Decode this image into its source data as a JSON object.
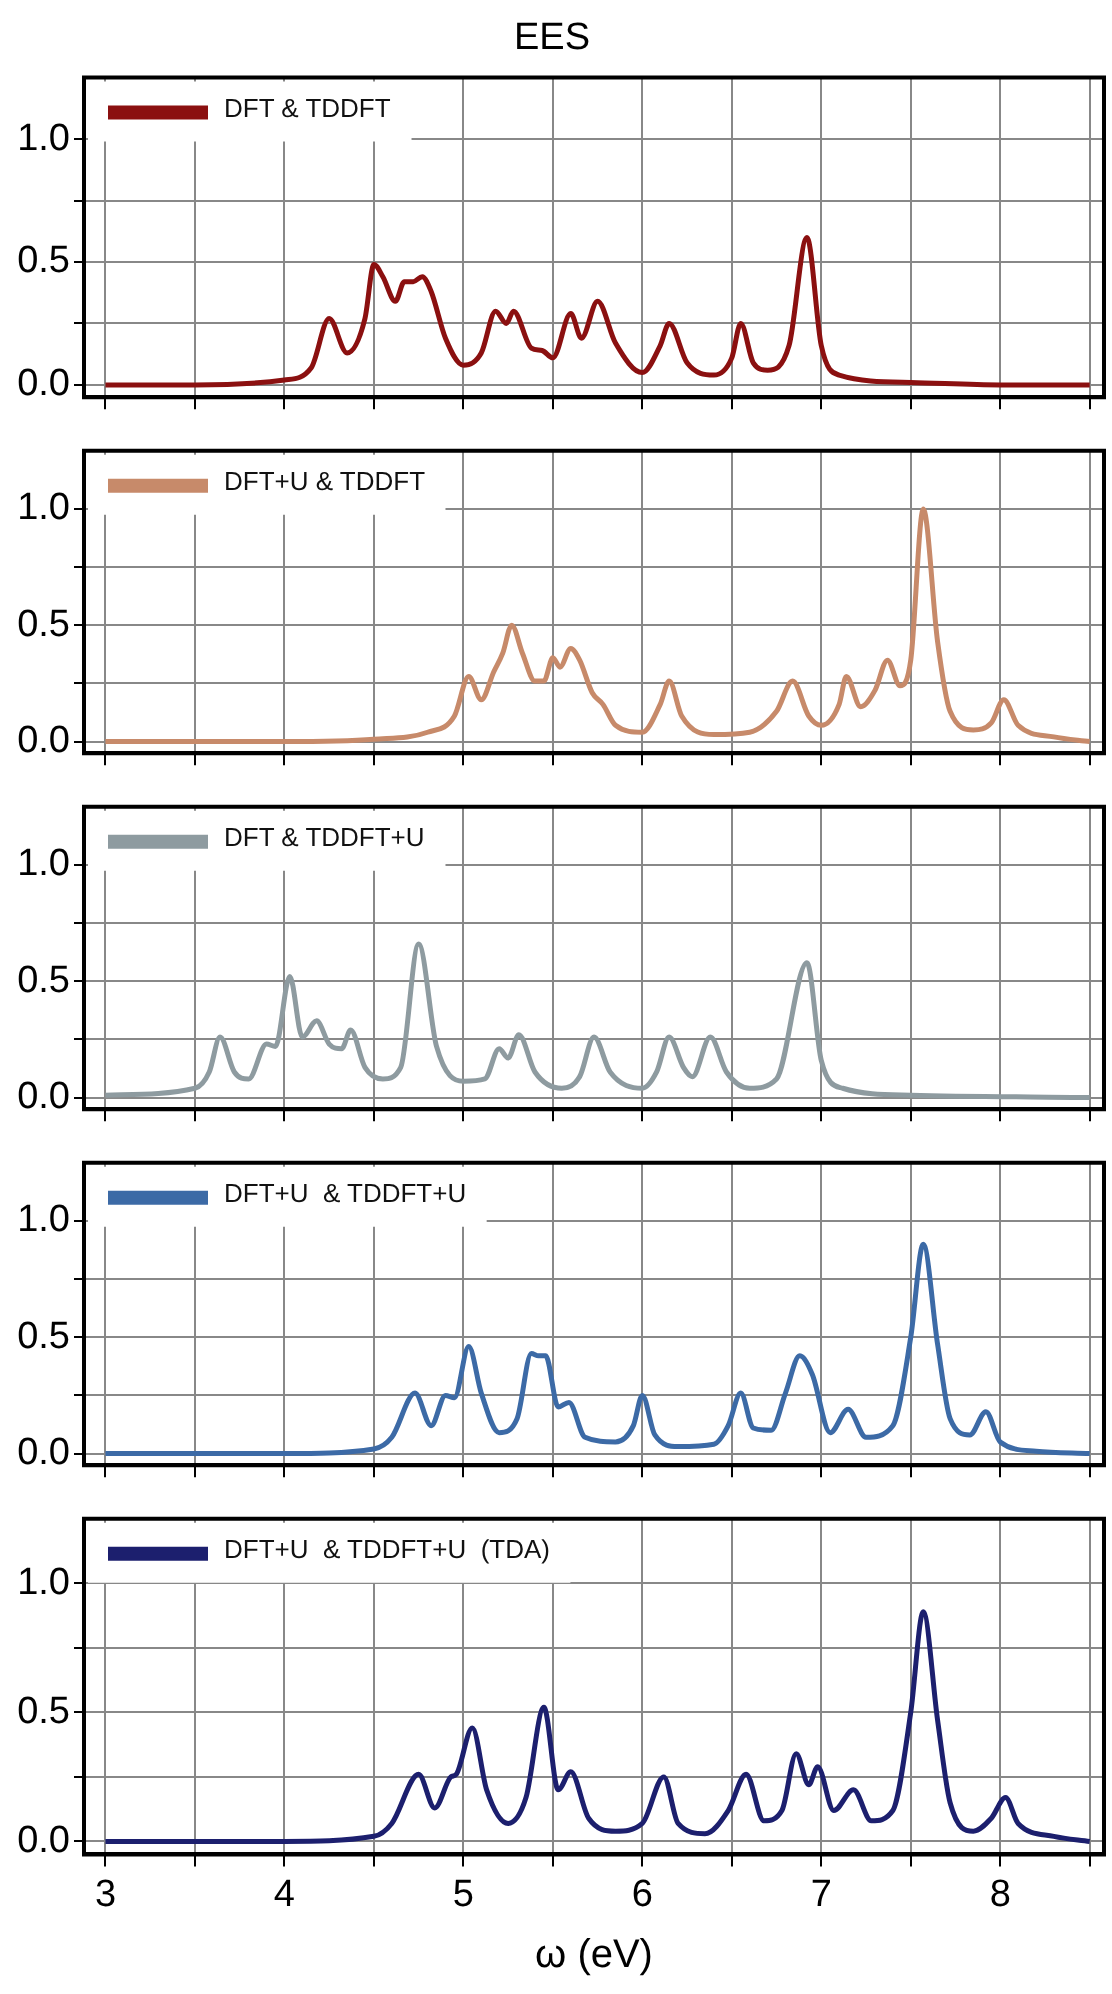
{
  "chart_data": [
    {
      "type": "line",
      "title": "EES",
      "legend": "top left",
      "marker": "none",
      "grid": true,
      "tick_labels": "y",
      "xlim": [
        2.88,
        8.58
      ],
      "ylim": [
        -0.05,
        1.25
      ],
      "xticks": [
        3,
        {
          "value": 3.5,
          "label": null
        },
        4,
        {
          "value": 4.5,
          "label": null
        },
        5,
        {
          "value": 5.5,
          "label": null
        },
        6,
        {
          "value": 6.5,
          "label": null
        },
        7,
        {
          "value": 7.5,
          "label": null
        },
        8,
        {
          "value": 8.5,
          "label": null
        }
      ],
      "yticks": [
        {
          "value": 0,
          "label": "0.0"
        },
        {
          "value": 0.25,
          "label": null
        },
        {
          "value": 0.5,
          "label": "0.5"
        },
        {
          "value": 0.75,
          "label": null
        },
        {
          "value": 1,
          "label": "1.0"
        }
      ],
      "series": [
        {
          "name": "DFT & TDDFT",
          "color": "#8b1010",
          "x": [
            3,
            3.5,
            4,
            4.15,
            4.25,
            4.35,
            4.45,
            4.5,
            4.55,
            4.62,
            4.67,
            4.72,
            4.77,
            4.82,
            4.9,
            5,
            5.1,
            5.18,
            5.24,
            5.28,
            5.38,
            5.44,
            5.5,
            5.6,
            5.66,
            5.75,
            5.85,
            6,
            6.1,
            6.15,
            6.25,
            6.4,
            6.5,
            6.55,
            6.62,
            6.7,
            6.82,
            6.92,
            7,
            7.1,
            7.5,
            8,
            8.5
          ],
          "values": [
            0,
            0,
            0.02,
            0.07,
            0.27,
            0.13,
            0.27,
            0.49,
            0.44,
            0.34,
            0.42,
            0.42,
            0.44,
            0.38,
            0.19,
            0.08,
            0.13,
            0.3,
            0.25,
            0.3,
            0.15,
            0.14,
            0.11,
            0.29,
            0.19,
            0.34,
            0.17,
            0.05,
            0.16,
            0.25,
            0.09,
            0.04,
            0.11,
            0.25,
            0.09,
            0.06,
            0.16,
            0.6,
            0.16,
            0.04,
            0.01,
            0,
            0
          ]
        }
      ]
    },
    {
      "type": "line",
      "legend": "top left",
      "marker": "none",
      "grid": true,
      "tick_labels": "y",
      "xlim": [
        2.88,
        8.58
      ],
      "ylim": [
        -0.05,
        1.25
      ],
      "xticks": [
        3,
        {
          "value": 3.5,
          "label": null
        },
        4,
        {
          "value": 4.5,
          "label": null
        },
        5,
        {
          "value": 5.5,
          "label": null
        },
        6,
        {
          "value": 6.5,
          "label": null
        },
        7,
        {
          "value": 7.5,
          "label": null
        },
        8,
        {
          "value": 8.5,
          "label": null
        }
      ],
      "yticks": [
        {
          "value": 0,
          "label": "0.0"
        },
        {
          "value": 0.25,
          "label": null
        },
        {
          "value": 0.5,
          "label": "0.5"
        },
        {
          "value": 0.75,
          "label": null
        },
        {
          "value": 1,
          "label": "1.0"
        }
      ],
      "series": [
        {
          "name": "DFT+U & TDDFT",
          "color": "#c78a6a",
          "x": [
            3,
            4,
            4.5,
            4.8,
            4.95,
            5.03,
            5.1,
            5.17,
            5.22,
            5.27,
            5.33,
            5.4,
            5.45,
            5.5,
            5.54,
            5.6,
            5.65,
            5.72,
            5.78,
            5.85,
            6,
            6.1,
            6.15,
            6.22,
            6.4,
            6.6,
            6.75,
            6.84,
            6.93,
            7,
            7.1,
            7.14,
            7.22,
            7.3,
            7.37,
            7.44,
            7.5,
            7.57,
            7.65,
            7.72,
            7.85,
            7.95,
            8.02,
            8.1,
            8.3,
            8.5
          ],
          "values": [
            0,
            0,
            0.01,
            0.04,
            0.11,
            0.28,
            0.18,
            0.3,
            0.38,
            0.5,
            0.38,
            0.26,
            0.26,
            0.36,
            0.32,
            0.4,
            0.35,
            0.21,
            0.16,
            0.07,
            0.04,
            0.16,
            0.26,
            0.11,
            0.03,
            0.04,
            0.13,
            0.26,
            0.11,
            0.07,
            0.16,
            0.28,
            0.15,
            0.22,
            0.35,
            0.24,
            0.35,
            1.0,
            0.43,
            0.13,
            0.05,
            0.08,
            0.18,
            0.07,
            0.02,
            0
          ]
        }
      ]
    },
    {
      "type": "line",
      "legend": "top left",
      "marker": "none",
      "grid": true,
      "tick_labels": "y",
      "xlim": [
        2.88,
        8.58
      ],
      "ylim": [
        -0.05,
        1.25
      ],
      "xticks": [
        3,
        {
          "value": 3.5,
          "label": null
        },
        4,
        {
          "value": 4.5,
          "label": null
        },
        5,
        {
          "value": 5.5,
          "label": null
        },
        6,
        {
          "value": 6.5,
          "label": null
        },
        7,
        {
          "value": 7.5,
          "label": null
        },
        8,
        {
          "value": 8.5,
          "label": null
        }
      ],
      "yticks": [
        {
          "value": 0,
          "label": "0.0"
        },
        {
          "value": 0.25,
          "label": null
        },
        {
          "value": 0.5,
          "label": "0.5"
        },
        {
          "value": 0.75,
          "label": null
        },
        {
          "value": 1,
          "label": "1.0"
        }
      ],
      "series": [
        {
          "name": "DFT & TDDFT+U",
          "color": "#8e9ba0",
          "x": [
            3,
            3.5,
            3.58,
            3.64,
            3.72,
            3.8,
            3.9,
            3.95,
            4.03,
            4.1,
            4.18,
            4.25,
            4.32,
            4.37,
            4.45,
            4.55,
            4.65,
            4.75,
            4.85,
            5,
            5.12,
            5.2,
            5.25,
            5.31,
            5.4,
            5.55,
            5.65,
            5.73,
            5.82,
            6,
            6.08,
            6.15,
            6.23,
            6.28,
            6.38,
            6.47,
            6.6,
            6.75,
            6.92,
            7,
            7.12,
            7.5,
            8.5
          ],
          "values": [
            0.01,
            0.04,
            0.11,
            0.26,
            0.11,
            0.08,
            0.23,
            0.22,
            0.52,
            0.26,
            0.33,
            0.23,
            0.21,
            0.29,
            0.13,
            0.08,
            0.13,
            0.66,
            0.22,
            0.07,
            0.08,
            0.21,
            0.17,
            0.27,
            0.11,
            0.04,
            0.09,
            0.26,
            0.11,
            0.04,
            0.11,
            0.26,
            0.13,
            0.09,
            0.26,
            0.11,
            0.04,
            0.08,
            0.58,
            0.16,
            0.04,
            0.01,
            0
          ]
        }
      ]
    },
    {
      "type": "line",
      "legend": "top left",
      "marker": "none",
      "grid": true,
      "tick_labels": "y",
      "xlim": [
        2.88,
        8.58
      ],
      "ylim": [
        -0.05,
        1.25
      ],
      "xticks": [
        3,
        {
          "value": 3.5,
          "label": null
        },
        4,
        {
          "value": 4.5,
          "label": null
        },
        5,
        {
          "value": 5.5,
          "label": null
        },
        6,
        {
          "value": 6.5,
          "label": null
        },
        7,
        {
          "value": 7.5,
          "label": null
        },
        8,
        {
          "value": 8.5,
          "label": null
        }
      ],
      "yticks": [
        {
          "value": 0,
          "label": "0.0"
        },
        {
          "value": 0.25,
          "label": null
        },
        {
          "value": 0.5,
          "label": "0.5"
        },
        {
          "value": 0.75,
          "label": null
        },
        {
          "value": 1,
          "label": "1.0"
        }
      ],
      "series": [
        {
          "name": "DFT+U  & TDDFT+U",
          "color": "#3c6aa6",
          "x": [
            3,
            4,
            4.5,
            4.6,
            4.73,
            4.82,
            4.9,
            4.95,
            5.03,
            5.1,
            5.2,
            5.3,
            5.38,
            5.42,
            5.46,
            5.53,
            5.59,
            5.68,
            5.85,
            5.95,
            6,
            6.07,
            6.2,
            6.4,
            6.48,
            6.55,
            6.62,
            6.72,
            6.8,
            6.88,
            6.95,
            7.05,
            7.15,
            7.25,
            7.4,
            7.5,
            7.57,
            7.65,
            7.72,
            7.83,
            7.92,
            8,
            8.2,
            8.5
          ],
          "values": [
            0,
            0,
            0.02,
            0.07,
            0.26,
            0.12,
            0.25,
            0.24,
            0.46,
            0.26,
            0.09,
            0.15,
            0.43,
            0.42,
            0.42,
            0.2,
            0.22,
            0.07,
            0.05,
            0.12,
            0.25,
            0.08,
            0.03,
            0.04,
            0.12,
            0.26,
            0.11,
            0.1,
            0.26,
            0.42,
            0.34,
            0.09,
            0.19,
            0.07,
            0.12,
            0.5,
            0.9,
            0.47,
            0.15,
            0.08,
            0.18,
            0.05,
            0.01,
            0
          ]
        }
      ]
    },
    {
      "type": "line",
      "xlabel": "ω (eV)",
      "legend": "top left",
      "marker": "none",
      "grid": true,
      "xlim": [
        2.88,
        8.58
      ],
      "ylim": [
        -0.05,
        1.25
      ],
      "xticks": [
        3,
        {
          "value": 3.5,
          "label": null
        },
        4,
        {
          "value": 4.5,
          "label": null
        },
        5,
        {
          "value": 5.5,
          "label": null
        },
        6,
        {
          "value": 6.5,
          "label": null
        },
        7,
        {
          "value": 7.5,
          "label": null
        },
        8,
        {
          "value": 8.5,
          "label": null
        }
      ],
      "yticks": [
        {
          "value": 0,
          "label": "0.0"
        },
        {
          "value": 0.25,
          "label": null
        },
        {
          "value": 0.5,
          "label": "0.5"
        },
        {
          "value": 0.75,
          "label": null
        },
        {
          "value": 1,
          "label": "1.0"
        }
      ],
      "series": [
        {
          "name": "DFT+U  & TDDFT+U  (TDA)",
          "color": "#1c1f6e",
          "x": [
            3,
            4,
            4.5,
            4.6,
            4.75,
            4.84,
            4.93,
            4.96,
            5.05,
            5.13,
            5.25,
            5.35,
            5.45,
            5.53,
            5.6,
            5.7,
            5.85,
            6,
            6.12,
            6.2,
            6.35,
            6.48,
            6.58,
            6.68,
            6.78,
            6.86,
            6.93,
            6.98,
            7.07,
            7.18,
            7.28,
            7.4,
            7.5,
            7.57,
            7.65,
            7.72,
            7.85,
            7.95,
            8.03,
            8.1,
            8.3,
            8.5
          ],
          "values": [
            0,
            0,
            0.02,
            0.07,
            0.26,
            0.13,
            0.25,
            0.26,
            0.44,
            0.2,
            0.07,
            0.17,
            0.52,
            0.2,
            0.27,
            0.09,
            0.04,
            0.07,
            0.25,
            0.07,
            0.03,
            0.12,
            0.26,
            0.08,
            0.12,
            0.34,
            0.22,
            0.29,
            0.12,
            0.2,
            0.08,
            0.12,
            0.5,
            0.89,
            0.47,
            0.15,
            0.04,
            0.09,
            0.17,
            0.07,
            0.02,
            0
          ]
        }
      ]
    }
  ]
}
